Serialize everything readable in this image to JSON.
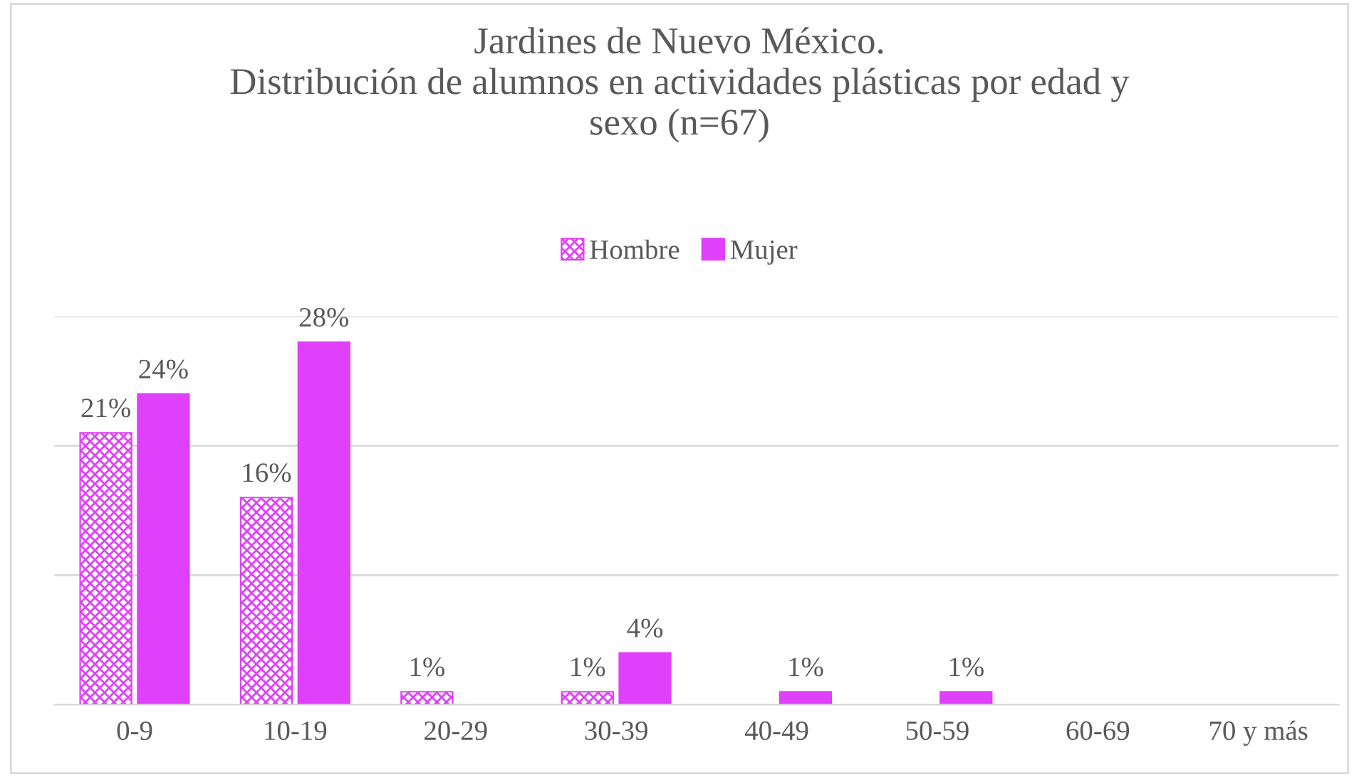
{
  "chart_data": {
    "type": "bar",
    "title": "Jardines de Nuevo México.\nDistribución de alumnos en actividades plásticas por edad y\nsexo (n=67)",
    "categories": [
      "0-9",
      "10-19",
      "20-29",
      "30-39",
      "40-49",
      "50-59",
      "60-69",
      "70 y más"
    ],
    "series": [
      {
        "name": "Hombre",
        "color": "#e040fb",
        "values": [
          21,
          16,
          1,
          1,
          null,
          null,
          null,
          null
        ],
        "value_labels": [
          "21%",
          "16%",
          "1%",
          "1%",
          null,
          null,
          null,
          null
        ]
      },
      {
        "name": "Mujer",
        "color": "#e040fb",
        "values": [
          24,
          28,
          null,
          4,
          1,
          1,
          null,
          null
        ],
        "value_labels": [
          "24%",
          "28%",
          null,
          "4%",
          "1%",
          "1%",
          null,
          null
        ]
      }
    ],
    "ylim": [
      0,
      30
    ],
    "yticks": [
      {
        "value": 0,
        "label": null
      },
      {
        "value": 10,
        "label": null
      },
      {
        "value": 20,
        "label": null
      },
      {
        "value": 30,
        "label": null
      }
    ],
    "tick_labels": "x",
    "grid": "y",
    "legend": "top"
  }
}
